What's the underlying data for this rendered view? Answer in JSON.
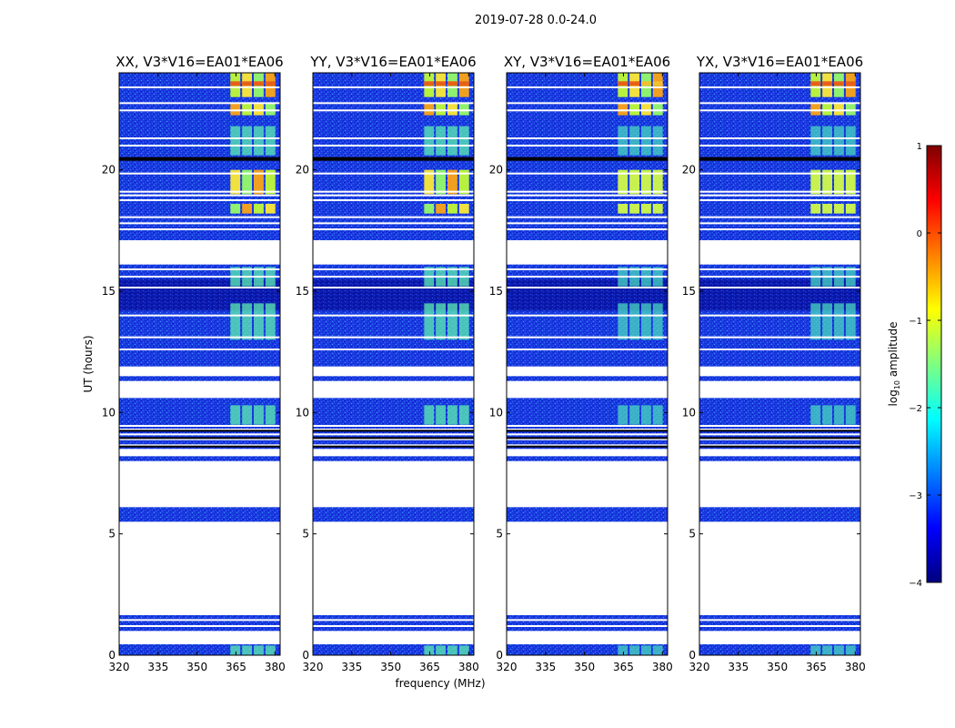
{
  "chart_data": {
    "type": "heatmap",
    "suptitle": "2019-07-28 0.0-24.0",
    "xlabel": "frequency (MHz)",
    "ylabel": "UT (hours)",
    "xlim": [
      320,
      382
    ],
    "ylim": [
      0,
      24
    ],
    "xticks": [
      320,
      335,
      350,
      365,
      380
    ],
    "yticks": [
      0,
      5,
      10,
      15,
      20
    ],
    "colormap": "jet",
    "colorbar": {
      "label_prefix": "log",
      "label_sub": "10",
      "label_suffix": " amplitude",
      "range": [
        -4,
        1
      ],
      "ticks": [
        1,
        0,
        -1,
        -2,
        -3,
        -4
      ],
      "tick_labels": [
        "1",
        "0",
        "−1",
        "−2",
        "−3",
        "−4"
      ]
    },
    "panels": [
      {
        "title": "XX, V3*V16=EA01*EA06",
        "pol": "XX"
      },
      {
        "title": "YY, V3*V16=EA01*EA06",
        "pol": "YY"
      },
      {
        "title": "XY, V3*V16=EA01*EA06",
        "pol": "XY"
      },
      {
        "title": "YX, V3*V16=EA01*EA06",
        "pol": "YX"
      }
    ],
    "data_gaps_hours": [
      [
        0.45,
        1.0
      ],
      [
        1.65,
        5.5
      ],
      [
        6.1,
        8.0
      ],
      [
        8.2,
        8.5
      ],
      [
        10.6,
        11.3
      ],
      [
        11.5,
        11.9
      ],
      [
        16.1,
        17.1
      ]
    ],
    "flagged_line_hours": [
      1.2,
      1.45,
      8.65,
      8.9,
      9.1,
      9.3,
      9.45,
      11.85,
      12.6,
      13.1,
      14.0,
      15.15,
      15.6,
      15.9,
      17.55,
      17.8,
      18.05,
      18.75,
      18.95,
      19.1,
      19.85,
      20.45,
      21.0,
      21.3,
      22.45,
      22.75,
      23.4
    ],
    "broad_flagged_hours": [
      20.45
    ],
    "rfi_band_mhz": [
      362.5,
      380.5
    ],
    "rfi_channel_edges_mhz": [
      362.5,
      367,
      371.5,
      376,
      380.5
    ],
    "rfi_strong_hours": [
      [
        22.25,
        22.75
      ],
      [
        23.0,
        24.0
      ],
      [
        19.0,
        20.0
      ],
      [
        18.2,
        18.6
      ]
    ],
    "rfi_moderate_hours": [
      [
        15.2,
        16.0
      ],
      [
        13.0,
        14.5
      ],
      [
        9.5,
        10.3
      ],
      [
        20.6,
        21.8
      ],
      [
        0.0,
        0.4
      ]
    ]
  }
}
